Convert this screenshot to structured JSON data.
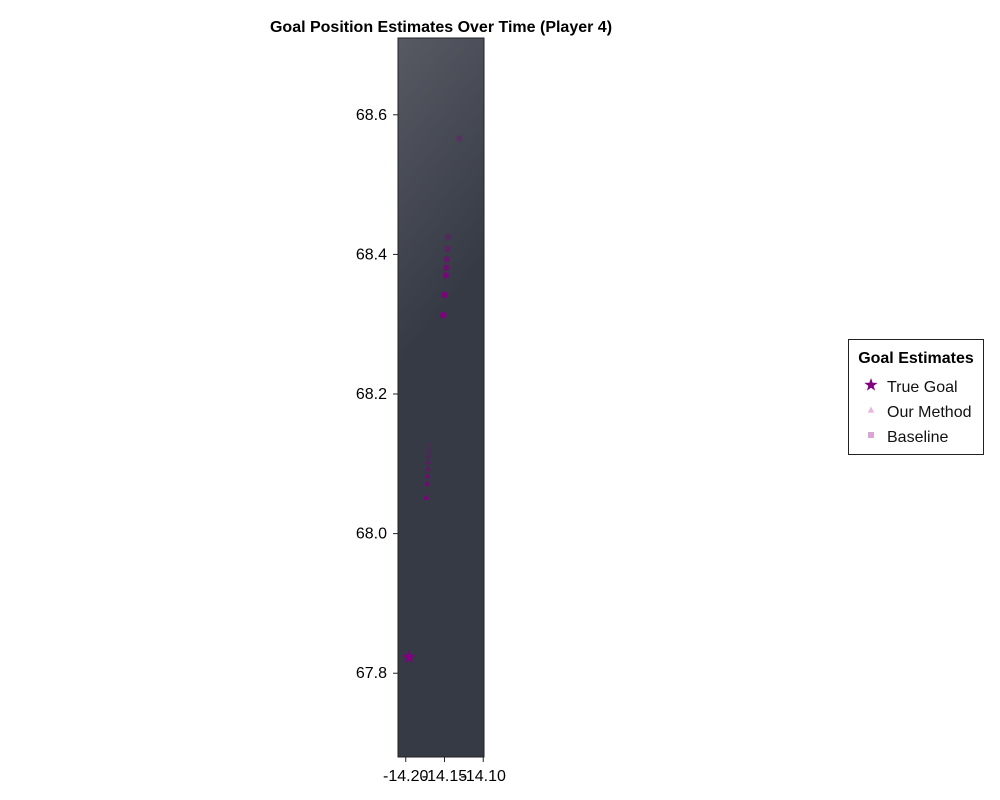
{
  "chart_data": {
    "type": "scatter",
    "title": "Goal Position Estimates Over Time (Player 4)",
    "xlabel": "",
    "ylabel": "",
    "xlim": [
      -14.21,
      -14.099
    ],
    "ylim": [
      67.68,
      68.71
    ],
    "x_ticks": [
      -14.2,
      -14.15,
      -14.1
    ],
    "x_tick_labels": [
      "-14.20",
      "-14.15",
      "-14.10"
    ],
    "y_ticks": [
      67.8,
      68.0,
      68.2,
      68.4,
      68.6
    ],
    "y_tick_labels": [
      "67.8",
      "68.0",
      "68.2",
      "68.4",
      "68.6"
    ],
    "legend": {
      "title": "Goal Estimates",
      "position": "right",
      "entries": [
        {
          "label": "True Goal",
          "marker": "star",
          "color": "#800080"
        },
        {
          "label": "Our Method",
          "marker": "triangle",
          "color": "#e8b4e0"
        },
        {
          "label": "Baseline",
          "marker": "square",
          "color": "#d9a6d6"
        }
      ]
    },
    "colors": {
      "background_top": "#575a63",
      "background_bottom": "#363a45",
      "point_dark": "#800080",
      "point_light": "#7a4a80"
    },
    "series": [
      {
        "name": "True Goal",
        "marker": "star",
        "points": [
          {
            "x": -14.196,
            "y": 67.823,
            "opacity": 1.0
          }
        ]
      },
      {
        "name": "Our Method",
        "marker": "triangle",
        "points": [
          {
            "x": -14.1735,
            "y": 68.052,
            "opacity": 1.0
          },
          {
            "x": -14.1725,
            "y": 68.072,
            "opacity": 0.85
          },
          {
            "x": -14.172,
            "y": 68.083,
            "opacity": 0.7
          },
          {
            "x": -14.1715,
            "y": 68.093,
            "opacity": 0.55
          },
          {
            "x": -14.171,
            "y": 68.103,
            "opacity": 0.45
          },
          {
            "x": -14.1705,
            "y": 68.112,
            "opacity": 0.35
          },
          {
            "x": -14.17,
            "y": 68.12,
            "opacity": 0.28
          },
          {
            "x": -14.1695,
            "y": 68.128,
            "opacity": 0.22
          }
        ]
      },
      {
        "name": "Baseline",
        "marker": "square",
        "points": [
          {
            "x": -14.1515,
            "y": 68.313,
            "opacity": 1.0
          },
          {
            "x": -14.15,
            "y": 68.342,
            "opacity": 0.95
          },
          {
            "x": -14.148,
            "y": 68.37,
            "opacity": 0.85
          },
          {
            "x": -14.1475,
            "y": 68.381,
            "opacity": 0.75
          },
          {
            "x": -14.147,
            "y": 68.393,
            "opacity": 0.6
          },
          {
            "x": -14.146,
            "y": 68.408,
            "opacity": 0.45
          },
          {
            "x": -14.1455,
            "y": 68.425,
            "opacity": 0.35
          },
          {
            "x": -14.131,
            "y": 68.566,
            "opacity": 0.3
          }
        ]
      }
    ]
  }
}
